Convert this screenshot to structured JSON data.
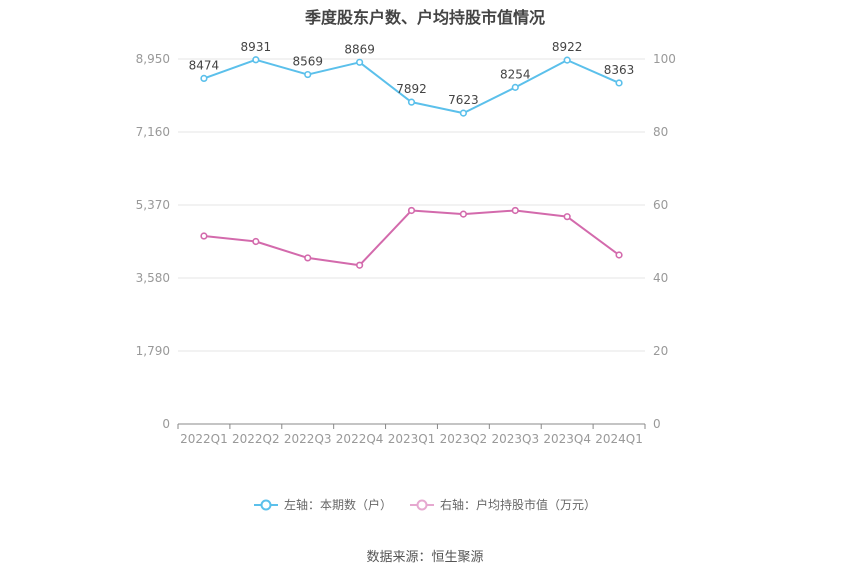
{
  "chart_data": {
    "type": "line",
    "title": "季度股东户数、户均持股市值情况",
    "categories": [
      "2022Q1",
      "2022Q2",
      "2022Q3",
      "2022Q4",
      "2023Q1",
      "2023Q2",
      "2023Q3",
      "2023Q4",
      "2024Q1"
    ],
    "series": [
      {
        "name": "左轴：本期数（户）",
        "axis": "left",
        "color": "#5bc0eb",
        "values": [
          8474,
          8931,
          8569,
          8869,
          7892,
          7623,
          8254,
          8922,
          8363
        ],
        "labels": [
          "8474",
          "8931",
          "8569",
          "8869",
          "7892",
          "7623",
          "8254",
          "8922",
          "8363"
        ]
      },
      {
        "name": "右轴：户均持股市值（万元）",
        "axis": "right",
        "color": "#d36aac",
        "values": [
          51.5,
          50.0,
          45.5,
          43.5,
          58.5,
          57.5,
          58.5,
          56.8,
          46.3
        ]
      }
    ],
    "left_axis": {
      "ylim": [
        0,
        8950
      ],
      "ticks": [
        "0",
        "1,790",
        "3,580",
        "5,370",
        "7,160",
        "8,950"
      ]
    },
    "right_axis": {
      "ylim": [
        0,
        100
      ],
      "ticks": [
        "0",
        "20",
        "40",
        "60",
        "80",
        "100"
      ]
    },
    "grid": true,
    "legend_position": "bottom"
  },
  "source": "数据来源：恒生聚源"
}
